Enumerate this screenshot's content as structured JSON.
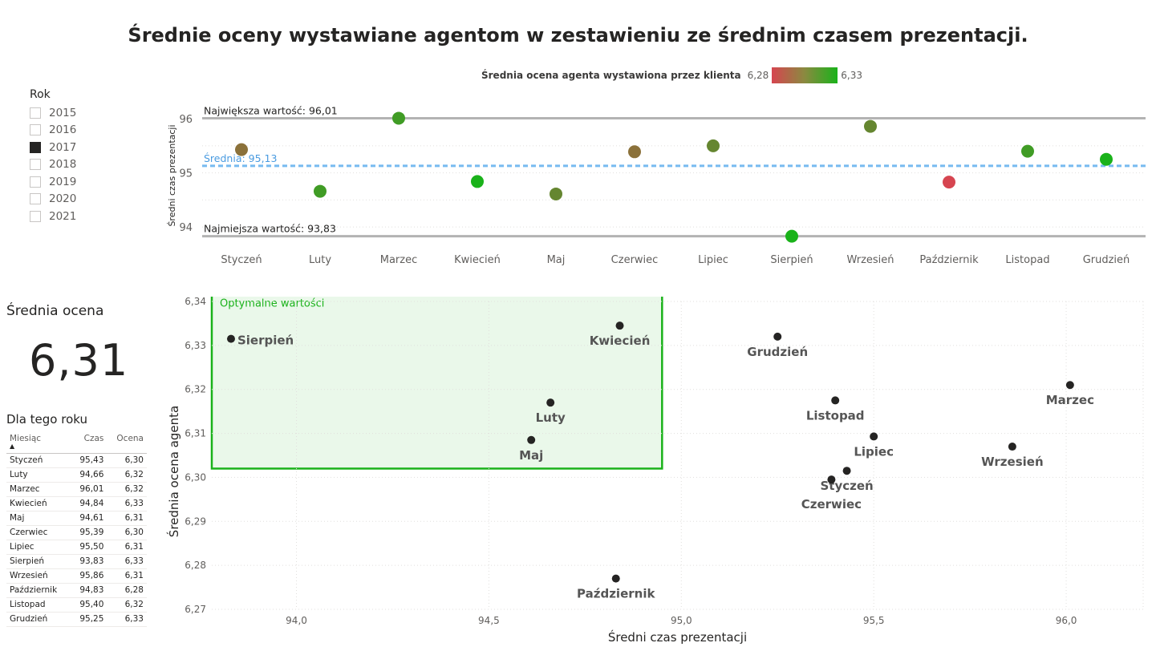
{
  "title": "Średnie oceny wystawiane agentom w zestawieniu ze średnim czasem prezentacji.",
  "legend": {
    "label": "Średnia ocena agenta wystawiona przez klienta",
    "min": "6,28",
    "max": "6,33",
    "colors": [
      "#d64550",
      "#1ab21a"
    ]
  },
  "slicer": {
    "header": "Rok",
    "items": [
      {
        "label": "2015",
        "checked": false
      },
      {
        "label": "2016",
        "checked": false
      },
      {
        "label": "2017",
        "checked": true
      },
      {
        "label": "2018",
        "checked": false
      },
      {
        "label": "2019",
        "checked": false
      },
      {
        "label": "2020",
        "checked": false
      },
      {
        "label": "2021",
        "checked": false
      }
    ]
  },
  "kpi": {
    "title": "Średnia ocena",
    "value": "6,31"
  },
  "table": {
    "title": "Dla tego roku",
    "columns": [
      "Miesiąc",
      "Czas",
      "Ocena"
    ],
    "rows": [
      [
        "Styczeń",
        "95,43",
        "6,30"
      ],
      [
        "Luty",
        "94,66",
        "6,32"
      ],
      [
        "Marzec",
        "96,01",
        "6,32"
      ],
      [
        "Kwiecień",
        "94,84",
        "6,33"
      ],
      [
        "Maj",
        "94,61",
        "6,31"
      ],
      [
        "Czerwiec",
        "95,39",
        "6,30"
      ],
      [
        "Lipiec",
        "95,50",
        "6,31"
      ],
      [
        "Sierpień",
        "93,83",
        "6,33"
      ],
      [
        "Wrzesień",
        "95,86",
        "6,31"
      ],
      [
        "Październik",
        "94,83",
        "6,28"
      ],
      [
        "Listopad",
        "95,40",
        "6,32"
      ],
      [
        "Grudzień",
        "95,25",
        "6,33"
      ]
    ]
  },
  "chart_data": [
    {
      "type": "scatter",
      "ylabel": "Średni czas prezentacji",
      "categories": [
        "Styczeń",
        "Luty",
        "Marzec",
        "Kwiecień",
        "Maj",
        "Czerwiec",
        "Lipiec",
        "Sierpień",
        "Wrzesień",
        "Październik",
        "Listopad",
        "Grudzień"
      ],
      "values": [
        95.43,
        94.66,
        96.01,
        94.84,
        94.61,
        95.39,
        95.5,
        93.83,
        95.86,
        94.83,
        95.4,
        95.25
      ],
      "ratings": [
        6.3,
        6.32,
        6.32,
        6.33,
        6.31,
        6.3,
        6.31,
        6.33,
        6.31,
        6.28,
        6.32,
        6.33
      ],
      "y_ticks": [
        "94",
        "95",
        "96"
      ],
      "ylim": [
        93.75,
        96.15
      ],
      "reference_lines": [
        {
          "label": "Największa wartość: 96,01",
          "value": 96.01,
          "color": "#b3b3b3"
        },
        {
          "label": "Średnia: 95,13",
          "value": 95.13,
          "color": "#77bbf0"
        },
        {
          "label": "Najmiejsza wartość: 93,83",
          "value": 93.83,
          "color": "#b3b3b3"
        }
      ],
      "grid": true
    },
    {
      "type": "scatter",
      "xlabel": "Średni czas prezentacji",
      "ylabel": "Średnia ocena agenta",
      "x_ticks": [
        "94,0",
        "94,5",
        "95,0",
        "95,5",
        "96,0"
      ],
      "y_ticks": [
        "6,27",
        "6,28",
        "6,29",
        "6,30",
        "6,31",
        "6,32",
        "6,33",
        "6,34"
      ],
      "xlim": [
        93.78,
        96.2
      ],
      "ylim": [
        6.27,
        6.34
      ],
      "points": [
        {
          "label": "Styczeń",
          "x": 95.43,
          "y": 6.3015
        },
        {
          "label": "Luty",
          "x": 94.66,
          "y": 6.317
        },
        {
          "label": "Marzec",
          "x": 96.01,
          "y": 6.321
        },
        {
          "label": "Kwiecień",
          "x": 94.84,
          "y": 6.3345
        },
        {
          "label": "Maj",
          "x": 94.61,
          "y": 6.3085
        },
        {
          "label": "Czerwiec",
          "x": 95.39,
          "y": 6.2995
        },
        {
          "label": "Lipiec",
          "x": 95.5,
          "y": 6.3093
        },
        {
          "label": "Sierpień",
          "x": 93.83,
          "y": 6.3315
        },
        {
          "label": "Wrzesień",
          "x": 95.86,
          "y": 6.307
        },
        {
          "label": "Październik",
          "x": 94.83,
          "y": 6.277
        },
        {
          "label": "Listopad",
          "x": 95.4,
          "y": 6.3175
        },
        {
          "label": "Grudzień",
          "x": 95.25,
          "y": 6.332
        }
      ],
      "optimal_zone": {
        "label": "Optymalne wartości",
        "x": [
          93.78,
          94.95
        ],
        "y": [
          6.302,
          6.3425
        ],
        "color": "#1ab21a"
      },
      "grid": true
    }
  ]
}
